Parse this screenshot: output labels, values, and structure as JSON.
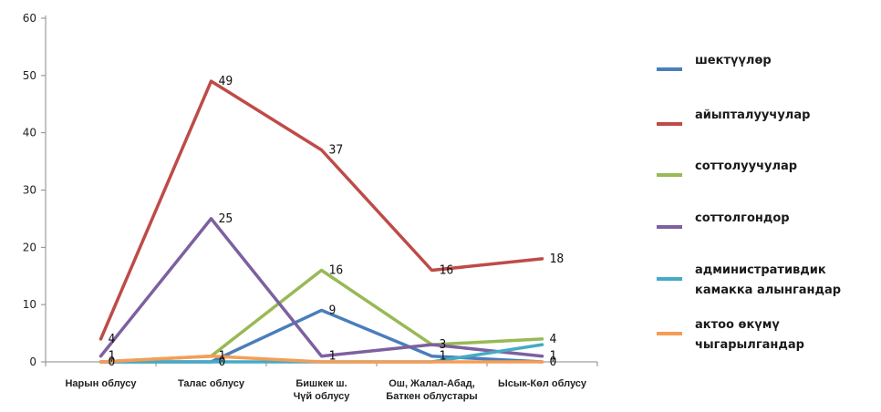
{
  "chart_data": {
    "type": "line",
    "categories": [
      [
        "Нарын облусу"
      ],
      [
        "Талас облусу"
      ],
      [
        "Бишкек ш.",
        "Чүй облусу"
      ],
      [
        "Ош, Жалал-Абад,",
        "Баткен облустары"
      ],
      [
        "Ысык-Көл облусу"
      ]
    ],
    "ylim": [
      0,
      60
    ],
    "yticks": [
      0,
      10,
      20,
      30,
      40,
      50,
      60
    ],
    "grid": false,
    "legend_position": "right",
    "series": [
      {
        "name": [
          "шектүүлөр"
        ],
        "color": "#4a7ebb",
        "values": [
          0,
          0,
          9,
          1,
          0
        ]
      },
      {
        "name": [
          "айыпталуучулар"
        ],
        "color": "#be4b48",
        "values": [
          4,
          49,
          37,
          16,
          18
        ]
      },
      {
        "name": [
          "соттолуучулар"
        ],
        "color": "#98b954",
        "values": [
          0,
          1,
          16,
          3,
          4
        ]
      },
      {
        "name": [
          "соттолгондор"
        ],
        "color": "#7d60a0",
        "values": [
          1,
          25,
          1,
          3,
          1
        ]
      },
      {
        "name": [
          "административдик",
          "камакка алынгандар"
        ],
        "color": "#46aac5",
        "values": [
          0,
          0,
          0,
          0,
          3
        ]
      },
      {
        "name": [
          "актоо өкүмү",
          "чыгарылгандар"
        ],
        "color": "#f59d56",
        "values": [
          0,
          1,
          0,
          0,
          0
        ]
      }
    ],
    "data_labels": [
      {
        "text": "4",
        "series": 1,
        "point": 0
      },
      {
        "text": "1",
        "series": 3,
        "point": 0
      },
      {
        "text": "0",
        "series": 0,
        "point": 0
      },
      {
        "text": "49",
        "series": 1,
        "point": 1
      },
      {
        "text": "25",
        "series": 3,
        "point": 1
      },
      {
        "text": "1",
        "series": 2,
        "point": 1
      },
      {
        "text": "0",
        "series": 0,
        "point": 1
      },
      {
        "text": "37",
        "series": 1,
        "point": 2
      },
      {
        "text": "16",
        "series": 2,
        "point": 2
      },
      {
        "text": "9",
        "series": 0,
        "point": 2
      },
      {
        "text": "1",
        "series": 3,
        "point": 2
      },
      {
        "text": "16",
        "series": 1,
        "point": 3
      },
      {
        "text": "3",
        "series": 3,
        "point": 3
      },
      {
        "text": "1",
        "series": 0,
        "point": 3
      },
      {
        "text": "18",
        "series": 1,
        "point": 4
      },
      {
        "text": "4",
        "series": 2,
        "point": 4
      },
      {
        "text": "1",
        "series": 3,
        "point": 4
      },
      {
        "text": "0",
        "series": 0,
        "point": 4
      }
    ]
  }
}
